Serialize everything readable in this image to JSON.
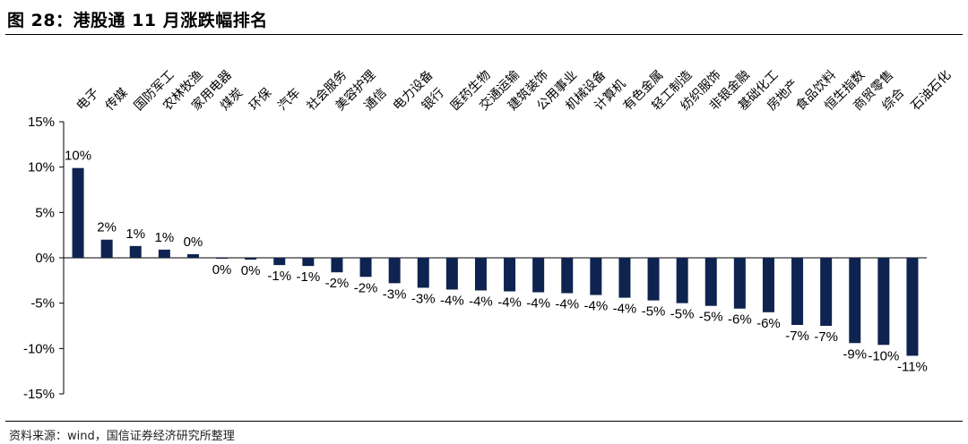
{
  "title": "图 28：港股通 11 月涨跌幅排名",
  "source": "资料来源：wind，国信证券经济研究所整理",
  "colors": {
    "bar": "#0f2350",
    "axis": "#000000"
  },
  "chart_data": {
    "type": "bar",
    "title": "图 28：港股通 11 月涨跌幅排名",
    "xlabel": "",
    "ylabel": "",
    "ylim": [
      -15,
      15
    ],
    "yticks": [
      15,
      10,
      5,
      0,
      -5,
      -10,
      -15
    ],
    "ytick_labels": [
      "15%",
      "10%",
      "5%",
      "0%",
      "-5%",
      "-10%",
      "-15%"
    ],
    "grid": false,
    "legend": "none",
    "categories": [
      "电子",
      "传媒",
      "国防军工",
      "农林牧渔",
      "家用电器",
      "煤炭",
      "环保",
      "汽车",
      "社会服务",
      "美容护理",
      "通信",
      "电力设备",
      "银行",
      "医药生物",
      "交通运输",
      "建筑装饰",
      "公用事业",
      "机械设备",
      "计算机",
      "有色金属",
      "轻工制造",
      "纺织服饰",
      "非银金融",
      "基础化工",
      "房地产",
      "食品饮料",
      "恒生指数",
      "商贸零售",
      "综合",
      "石油石化"
    ],
    "values": [
      9.9,
      2.0,
      1.3,
      0.9,
      0.4,
      -0.1,
      -0.2,
      -0.8,
      -0.9,
      -1.6,
      -2.1,
      -2.8,
      -3.3,
      -3.5,
      -3.6,
      -3.7,
      -3.8,
      -3.9,
      -4.1,
      -4.4,
      -4.7,
      -5.0,
      -5.3,
      -5.6,
      -6.0,
      -7.4,
      -7.5,
      -9.4,
      -9.6,
      -10.8
    ],
    "data_labels": [
      "10%",
      "2%",
      "1%",
      "1%",
      "0%",
      "0%",
      "0%",
      "-1%",
      "-1%",
      "-2%",
      "-2%",
      "-3%",
      "-3%",
      "-4%",
      "-4%",
      "-4%",
      "-4%",
      "-4%",
      "-4%",
      "-4%",
      "-5%",
      "-5%",
      "-5%",
      "-6%",
      "-6%",
      "-7%",
      "-7%",
      "-9%",
      "-10%",
      "-11%"
    ]
  }
}
